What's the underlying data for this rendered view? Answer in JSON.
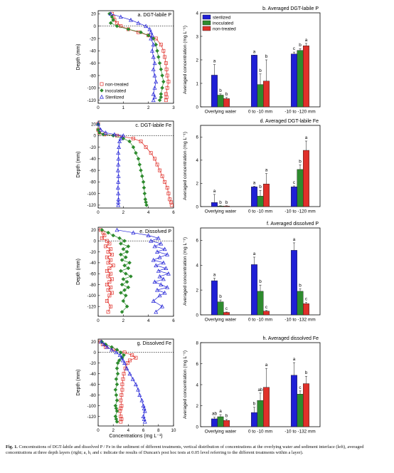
{
  "caption": {
    "label": "Fig. 1.",
    "text": "Concentrations of DGT-labile and dissolved P / Fe in the sediment of different treatments, vertical distribution of concentrations at the overlying water and sediment interface (left), averaged concentrations at three depth layers (right; a, b, and c indicate the results of Duncan's post hoc tests at 0.05 level referring to the different treatments within a layer)."
  },
  "colors": {
    "sterilized": "#1f1fd6",
    "inoculated": "#2e8b2e",
    "non_treated": "#e0302a"
  },
  "chart_data": [
    {
      "id": "a",
      "type": "line",
      "title": "a. DGT-labile P",
      "ylabel": "Depth (mm)",
      "xlim": [
        0,
        3
      ],
      "ylim": [
        -125,
        25
      ],
      "xticks": [
        "0",
        "1",
        "2",
        "3"
      ],
      "yticks": [
        "20",
        "0",
        "-20",
        "-40",
        "-60",
        "-80",
        "-100",
        "-120"
      ],
      "legend": {
        "position": "bottom-left",
        "entries": [
          "non-treated",
          "inoculated",
          "Sterilized"
        ]
      },
      "series": [
        {
          "name": "non-treated",
          "color_key": "non_treated",
          "marker": "square",
          "x": [
            0.55,
            0.6,
            0.65,
            0.75,
            0.9,
            1.2,
            1.6,
            2.0,
            2.3,
            2.5,
            2.6,
            2.65,
            2.7,
            2.72,
            2.75,
            2.8,
            2.75,
            2.7,
            2.72,
            2.7
          ],
          "y": [
            20,
            15,
            10,
            5,
            0,
            -5,
            -10,
            -15,
            -20,
            -30,
            -40,
            -50,
            -60,
            -70,
            -80,
            -90,
            -100,
            -110,
            -115,
            -120
          ]
        },
        {
          "name": "inoculated",
          "color_key": "inoculated",
          "marker": "diamond",
          "x": [
            0.45,
            0.55,
            0.6,
            0.5,
            0.75,
            1.2,
            1.7,
            2.0,
            2.2,
            2.3,
            2.35,
            2.4,
            2.45,
            2.5,
            2.55,
            2.6,
            2.55,
            2.5,
            2.5,
            2.45
          ],
          "y": [
            20,
            15,
            10,
            5,
            0,
            -5,
            -10,
            -15,
            -20,
            -30,
            -40,
            -50,
            -60,
            -70,
            -80,
            -90,
            -100,
            -110,
            -115,
            -120
          ]
        },
        {
          "name": "Sterilized",
          "color_key": "sterilized",
          "marker": "triangle",
          "x": [
            0.5,
            0.9,
            1.3,
            1.6,
            1.9,
            2.05,
            2.1,
            2.15,
            2.1,
            2.2,
            2.15,
            2.2,
            2.25,
            2.2,
            2.25,
            2.3,
            2.25,
            2.2,
            2.25,
            2.2
          ],
          "y": [
            20,
            15,
            10,
            5,
            0,
            -5,
            -10,
            -15,
            -20,
            -30,
            -40,
            -50,
            -60,
            -70,
            -80,
            -90,
            -100,
            -110,
            -115,
            -120
          ]
        }
      ]
    },
    {
      "id": "b",
      "type": "bar",
      "title": "b. Averaged DGT-labile P",
      "ylabel": "Averaged concentration (mg L⁻¹)",
      "ylim": [
        0,
        4
      ],
      "yticks": [
        "0",
        "1",
        "2",
        "3",
        "4"
      ],
      "categories": [
        "Overlying water",
        "0 to -10 mm",
        "-10 to -120 mm"
      ],
      "legend": {
        "position": "top-left",
        "entries": [
          "sterilized",
          "inoculated",
          "non-treated"
        ]
      },
      "series": [
        {
          "name": "sterilized",
          "color_key": "sterilized",
          "values": [
            1.35,
            2.2,
            2.25
          ],
          "errors": [
            0.45,
            0.0,
            0.08
          ],
          "letters": [
            "a",
            "a",
            "c"
          ]
        },
        {
          "name": "inoculated",
          "color_key": "inoculated",
          "values": [
            0.5,
            0.95,
            2.4
          ],
          "errors": [
            0.05,
            0.45,
            0.08
          ],
          "letters": [
            "b",
            "b",
            "b"
          ]
        },
        {
          "name": "non-treated",
          "color_key": "non_treated",
          "values": [
            0.35,
            1.1,
            2.6
          ],
          "errors": [
            0.05,
            0.9,
            0.1
          ],
          "letters": [
            "b",
            "b",
            "a"
          ]
        }
      ]
    },
    {
      "id": "c",
      "type": "line",
      "title": "c. DGT-labile Fe",
      "ylabel": "Depth (mm)",
      "xlim": [
        0,
        6
      ],
      "ylim": [
        -125,
        25
      ],
      "xticks": [
        "0",
        "2",
        "4",
        "6"
      ],
      "yticks": [
        "20",
        "0",
        "-20",
        "-40",
        "-60",
        "-80",
        "-100",
        "-120"
      ],
      "series": [
        {
          "name": "non-treated",
          "color_key": "non_treated",
          "marker": "square",
          "x": [
            0.0,
            0.0,
            0.1,
            0.5,
            1.5,
            2.8,
            3.4,
            3.8,
            4.2,
            4.5,
            4.7,
            4.9,
            5.1,
            5.3,
            5.5,
            5.6,
            5.7,
            5.8,
            5.85
          ],
          "y": [
            20,
            10,
            5,
            2,
            0,
            -5,
            -10,
            -20,
            -30,
            -40,
            -50,
            -60,
            -70,
            -80,
            -90,
            -100,
            -110,
            -115,
            -120
          ]
        },
        {
          "name": "inoculated",
          "color_key": "inoculated",
          "marker": "diamond",
          "x": [
            0.0,
            0.0,
            0.1,
            0.4,
            1.2,
            2.0,
            2.5,
            2.8,
            3.0,
            3.2,
            3.3,
            3.4,
            3.5,
            3.6,
            3.65,
            3.7,
            3.75,
            3.8,
            3.85
          ],
          "y": [
            20,
            10,
            5,
            2,
            0,
            -5,
            -10,
            -20,
            -30,
            -40,
            -50,
            -60,
            -70,
            -80,
            -90,
            -100,
            -110,
            -115,
            -120
          ]
        },
        {
          "name": "Sterilized",
          "color_key": "sterilized",
          "marker": "triangle",
          "x": [
            0.0,
            0.2,
            0.6,
            1.3,
            2.0,
            1.8,
            1.7,
            1.65,
            1.6,
            1.62,
            1.6,
            1.58,
            1.62,
            1.6,
            1.58,
            1.6,
            1.62,
            1.6,
            1.6
          ],
          "y": [
            20,
            10,
            5,
            2,
            0,
            -5,
            -10,
            -20,
            -30,
            -40,
            -50,
            -60,
            -70,
            -80,
            -90,
            -100,
            -110,
            -115,
            -120
          ]
        }
      ]
    },
    {
      "id": "d",
      "type": "bar",
      "title": "d. Averaged DGT-labile Fe",
      "ylabel": "Averaged concentration (mg L⁻¹)",
      "ylim": [
        0,
        7
      ],
      "yticks": [
        "0",
        "2",
        "4",
        "6"
      ],
      "categories": [
        "Overlying water",
        "0 to -10 mm",
        "-10 to -120 mm"
      ],
      "series": [
        {
          "name": "sterilized",
          "color_key": "sterilized",
          "values": [
            0.35,
            1.7,
            1.7
          ],
          "errors": [
            0.7,
            0.05,
            0.08
          ],
          "letters": [
            "a",
            "a",
            "c"
          ]
        },
        {
          "name": "inoculated",
          "color_key": "inoculated",
          "values": [
            0.05,
            0.9,
            3.2
          ],
          "errors": [
            0.02,
            0.5,
            0.4
          ],
          "letters": [
            "b",
            "b",
            "b"
          ]
        },
        {
          "name": "non-treated",
          "color_key": "non_treated",
          "values": [
            0.05,
            1.95,
            4.85
          ],
          "errors": [
            0.02,
            0.9,
            0.8
          ],
          "letters": [
            "b",
            "a",
            "a"
          ]
        }
      ]
    },
    {
      "id": "e",
      "type": "line",
      "title": "e. Dissolved P",
      "ylabel": "Depth (mm)",
      "xlim": [
        0,
        6
      ],
      "ylim": [
        -138,
        25
      ],
      "xticks": [
        "0",
        "2",
        "4",
        "6"
      ],
      "yticks": [
        "20",
        "0",
        "-20",
        "-40",
        "-60",
        "-80",
        "-100",
        "-120"
      ],
      "series": [
        {
          "name": "non-treated",
          "color_key": "non_treated",
          "marker": "square",
          "x": [
            0.2,
            0.4,
            0.5,
            0.3,
            0.7,
            0.9,
            0.6,
            1.0,
            0.8,
            1.1,
            0.7,
            1.0,
            0.8,
            1.2,
            0.9,
            0.7,
            1.0,
            0.8,
            1.1,
            0.9,
            0.7,
            1.0,
            0.8,
            1.1,
            0.9,
            0.7,
            1.0,
            0.8
          ],
          "y": [
            20,
            15,
            10,
            5,
            0,
            -5,
            -10,
            -15,
            -20,
            -25,
            -30,
            -35,
            -40,
            -45,
            -50,
            -55,
            -60,
            -65,
            -70,
            -75,
            -80,
            -85,
            -90,
            -95,
            -100,
            -110,
            -120,
            -130
          ]
        },
        {
          "name": "inoculated",
          "color_key": "inoculated",
          "marker": "diamond",
          "x": [
            0.3,
            0.8,
            1.2,
            1.7,
            2.1,
            1.8,
            2.4,
            2.0,
            2.3,
            1.8,
            2.2,
            1.9,
            2.5,
            2.1,
            2.4,
            1.8,
            2.2,
            2.6,
            2.0,
            2.3,
            1.9,
            2.4,
            2.1,
            1.8,
            2.2,
            2.0,
            2.3,
            1.9
          ],
          "y": [
            20,
            15,
            10,
            5,
            0,
            -5,
            -10,
            -15,
            -20,
            -25,
            -30,
            -35,
            -40,
            -45,
            -50,
            -55,
            -60,
            -65,
            -70,
            -75,
            -80,
            -85,
            -90,
            -95,
            -100,
            -110,
            -120,
            -130
          ]
        },
        {
          "name": "Sterilized",
          "color_key": "sterilized",
          "marker": "triangle",
          "x": [
            1.5,
            2.8,
            4.0,
            4.8,
            4.2,
            5.0,
            4.5,
            5.3,
            4.7,
            5.5,
            4.9,
            4.4,
            5.2,
            4.6,
            5.4,
            4.8,
            5.6,
            4.9,
            5.2,
            4.5,
            5.0,
            5.5,
            4.7,
            5.3,
            4.9,
            4.4,
            5.1,
            4.6
          ],
          "y": [
            20,
            15,
            10,
            5,
            0,
            -5,
            -10,
            -15,
            -20,
            -25,
            -30,
            -35,
            -40,
            -45,
            -50,
            -55,
            -60,
            -65,
            -70,
            -75,
            -80,
            -85,
            -90,
            -95,
            -100,
            -110,
            -120,
            -130
          ]
        }
      ]
    },
    {
      "id": "f",
      "type": "bar",
      "title": "f. Averaged dissolved P",
      "ylabel": "Averaged concentration (mg L⁻¹)",
      "ylim": [
        0,
        7
      ],
      "yticks": [
        "0",
        "2",
        "4",
        "6"
      ],
      "categories": [
        "Overlying water",
        "0 to -10 mm",
        "-10 to -132 mm"
      ],
      "series": [
        {
          "name": "sterilized",
          "color_key": "sterilized",
          "values": [
            2.75,
            4.05,
            5.2
          ],
          "errors": [
            0.2,
            0.6,
            0.6
          ],
          "letters": [
            "a",
            "a",
            "a"
          ]
        },
        {
          "name": "inoculated",
          "color_key": "inoculated",
          "values": [
            1.05,
            1.9,
            1.9
          ],
          "errors": [
            0.15,
            0.5,
            0.2
          ],
          "letters": [
            "b",
            "b",
            "b"
          ]
        },
        {
          "name": "non-treated",
          "color_key": "non_treated",
          "values": [
            0.2,
            0.3,
            0.9
          ],
          "errors": [
            0.03,
            0.05,
            0.1
          ],
          "letters": [
            "c",
            "c",
            "c"
          ]
        }
      ]
    },
    {
      "id": "g",
      "type": "line",
      "title": "g. Dissolved Fe",
      "ylabel": "Depth (mm)",
      "xlabel": "Concentrations (mg L⁻¹)",
      "xlim": [
        0,
        10
      ],
      "ylim": [
        -138,
        25
      ],
      "xticks": [
        "0",
        "2",
        "4",
        "6",
        "8",
        "10"
      ],
      "yticks": [
        "20",
        "0",
        "-20",
        "-40",
        "-60",
        "-80",
        "-100",
        "-120"
      ],
      "series": [
        {
          "name": "non-treated",
          "color_key": "non_treated",
          "marker": "square",
          "x": [
            0.3,
            0.6,
            1.0,
            2.0,
            3.5,
            4.5,
            5.0,
            4.2,
            3.9,
            3.6,
            3.4,
            3.3,
            3.2,
            3.2,
            3.1,
            3.0,
            3.1,
            3.0,
            2.9,
            3.0,
            3.1,
            3.0
          ],
          "y": [
            20,
            15,
            10,
            5,
            0,
            -5,
            -10,
            -15,
            -20,
            -30,
            -40,
            -50,
            -60,
            -70,
            -80,
            -90,
            -100,
            -105,
            -110,
            -120,
            -125,
            -130
          ]
        },
        {
          "name": "inoculated",
          "color_key": "inoculated",
          "marker": "diamond",
          "x": [
            0.5,
            1.0,
            1.8,
            2.5,
            3.0,
            3.4,
            3.2,
            2.8,
            2.6,
            2.5,
            2.6,
            2.4,
            2.5,
            2.3,
            2.4,
            2.5,
            2.3,
            2.4,
            2.5,
            2.3,
            2.4,
            2.5
          ],
          "y": [
            20,
            15,
            10,
            5,
            0,
            -5,
            -10,
            -15,
            -20,
            -30,
            -40,
            -50,
            -60,
            -70,
            -80,
            -90,
            -100,
            -105,
            -110,
            -120,
            -125,
            -130
          ]
        },
        {
          "name": "Sterilized",
          "color_key": "sterilized",
          "marker": "triangle",
          "x": [
            0.4,
            0.8,
            1.2,
            1.8,
            2.4,
            2.9,
            3.1,
            3.3,
            3.5,
            3.8,
            4.2,
            4.6,
            5.0,
            5.3,
            5.5,
            5.8,
            6.0,
            6.1,
            6.2,
            6.0,
            6.1,
            6.2
          ],
          "y": [
            20,
            15,
            10,
            5,
            0,
            -5,
            -10,
            -15,
            -20,
            -30,
            -40,
            -50,
            -60,
            -70,
            -80,
            -90,
            -100,
            -105,
            -110,
            -120,
            -125,
            -130
          ]
        }
      ]
    },
    {
      "id": "h",
      "type": "bar",
      "title": "h. Averaged dissolved Fe",
      "ylabel": "Averaged concentration (mg L⁻¹)",
      "ylim": [
        0,
        8
      ],
      "yticks": [
        "0",
        "2",
        "4",
        "6",
        "8"
      ],
      "categories": [
        "Overlying water",
        "0 to -10 mm",
        "-10 to -132 mm"
      ],
      "series": [
        {
          "name": "sterilized",
          "color_key": "sterilized",
          "values": [
            0.75,
            1.35,
            4.9
          ],
          "errors": [
            0.15,
            0.5,
            1.2
          ],
          "letters": [
            "ab",
            "b",
            "a"
          ]
        },
        {
          "name": "inoculated",
          "color_key": "inoculated",
          "values": [
            0.95,
            2.5,
            3.1
          ],
          "errors": [
            0.2,
            0.7,
            0.3
          ],
          "letters": [
            "a",
            "ab",
            "c"
          ]
        },
        {
          "name": "non-treated",
          "color_key": "non_treated",
          "values": [
            0.6,
            3.75,
            4.1
          ],
          "errors": [
            0.1,
            1.8,
            0.7
          ],
          "letters": [
            "b",
            "a",
            "b"
          ]
        }
      ]
    }
  ]
}
